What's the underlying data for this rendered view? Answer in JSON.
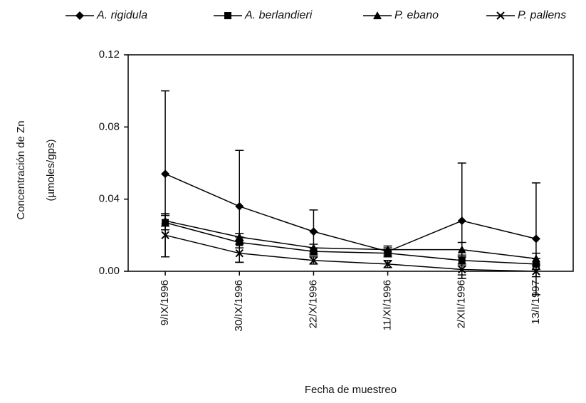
{
  "chart_data": {
    "type": "line",
    "xlabel": "Fecha de muestreo",
    "ylabel": [
      "Concentración de Zn",
      "(µmoles/gps)"
    ],
    "categories": [
      "9/IX/1996",
      "30/IX/1996",
      "22/X/1996",
      "11/XI/1996",
      "2/XII/1996",
      "13/I/1997"
    ],
    "ylim": [
      0,
      0.12
    ],
    "yticks": [
      {
        "value": 0,
        "label": "0.00"
      },
      0.04,
      0.08,
      0.12
    ],
    "series": [
      {
        "name": "A. rigidula",
        "color": "#000000",
        "marker": "diamond",
        "values": [
          0.054,
          0.036,
          0.022,
          0.011,
          0.028,
          0.018
        ],
        "errors": [
          0.046,
          0.031,
          0.012,
          0.002,
          0.032,
          0.031
        ]
      },
      {
        "name": "A. berlandieri",
        "color": "#000000",
        "marker": "square",
        "values": [
          0.027,
          0.016,
          0.011,
          0.01,
          0.006,
          0.004
        ],
        "errors": [
          0.004,
          0.003,
          0.002,
          0.002,
          0.003,
          0.003
        ]
      },
      {
        "name": "P. ebano",
        "color": "#000000",
        "marker": "triangle",
        "values": [
          0.028,
          0.019,
          0.013,
          0.012,
          0.012,
          0.007
        ],
        "errors": [
          0.003,
          0.002,
          0.002,
          0.002,
          0.004,
          0.003
        ]
      },
      {
        "name": "P. pallens",
        "color": "#000000",
        "marker": "x",
        "values": [
          0.02,
          0.01,
          0.006,
          0.004,
          0.001,
          0
        ],
        "errors": [
          0.012,
          0.005,
          0.002,
          0.002,
          0.003,
          0.003
        ]
      }
    ]
  }
}
